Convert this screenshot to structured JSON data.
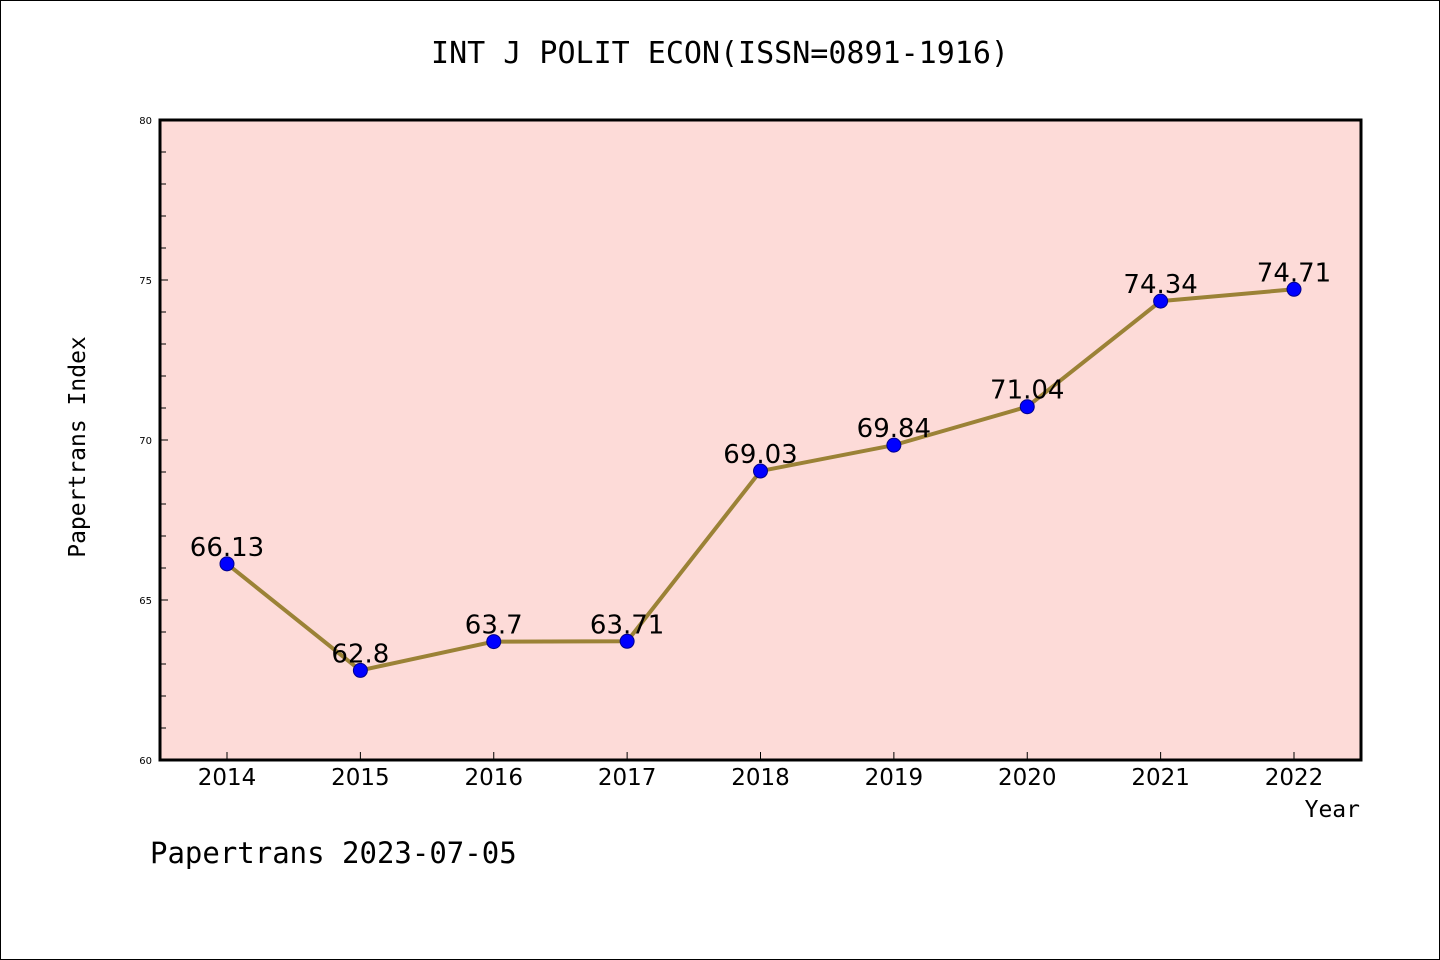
{
  "chart_data": {
    "type": "line",
    "title": "INT J POLIT ECON(ISSN=0891-1916)",
    "xlabel": "Year",
    "ylabel": "Papertrans Index",
    "categories": [
      "2014",
      "2015",
      "2016",
      "2017",
      "2018",
      "2019",
      "2020",
      "2021",
      "2022"
    ],
    "series": [
      {
        "values": [
          66.13,
          62.8,
          63.7,
          63.71,
          69.03,
          69.84,
          71.04,
          74.34,
          74.71
        ],
        "labels": [
          "66.13",
          "62.8",
          "63.7",
          "63.71",
          "69.03",
          "69.84",
          "71.04",
          "74.34",
          "74.71"
        ]
      }
    ],
    "ylim": [
      60,
      80
    ],
    "yticks": [
      "60",
      "65",
      "70",
      "75",
      "80"
    ],
    "grid": false,
    "colors": {
      "plot_background": "#fddbd8",
      "line": "#9b8236",
      "marker": "#0000ff"
    }
  },
  "footer": "Papertrans 2023-07-05"
}
